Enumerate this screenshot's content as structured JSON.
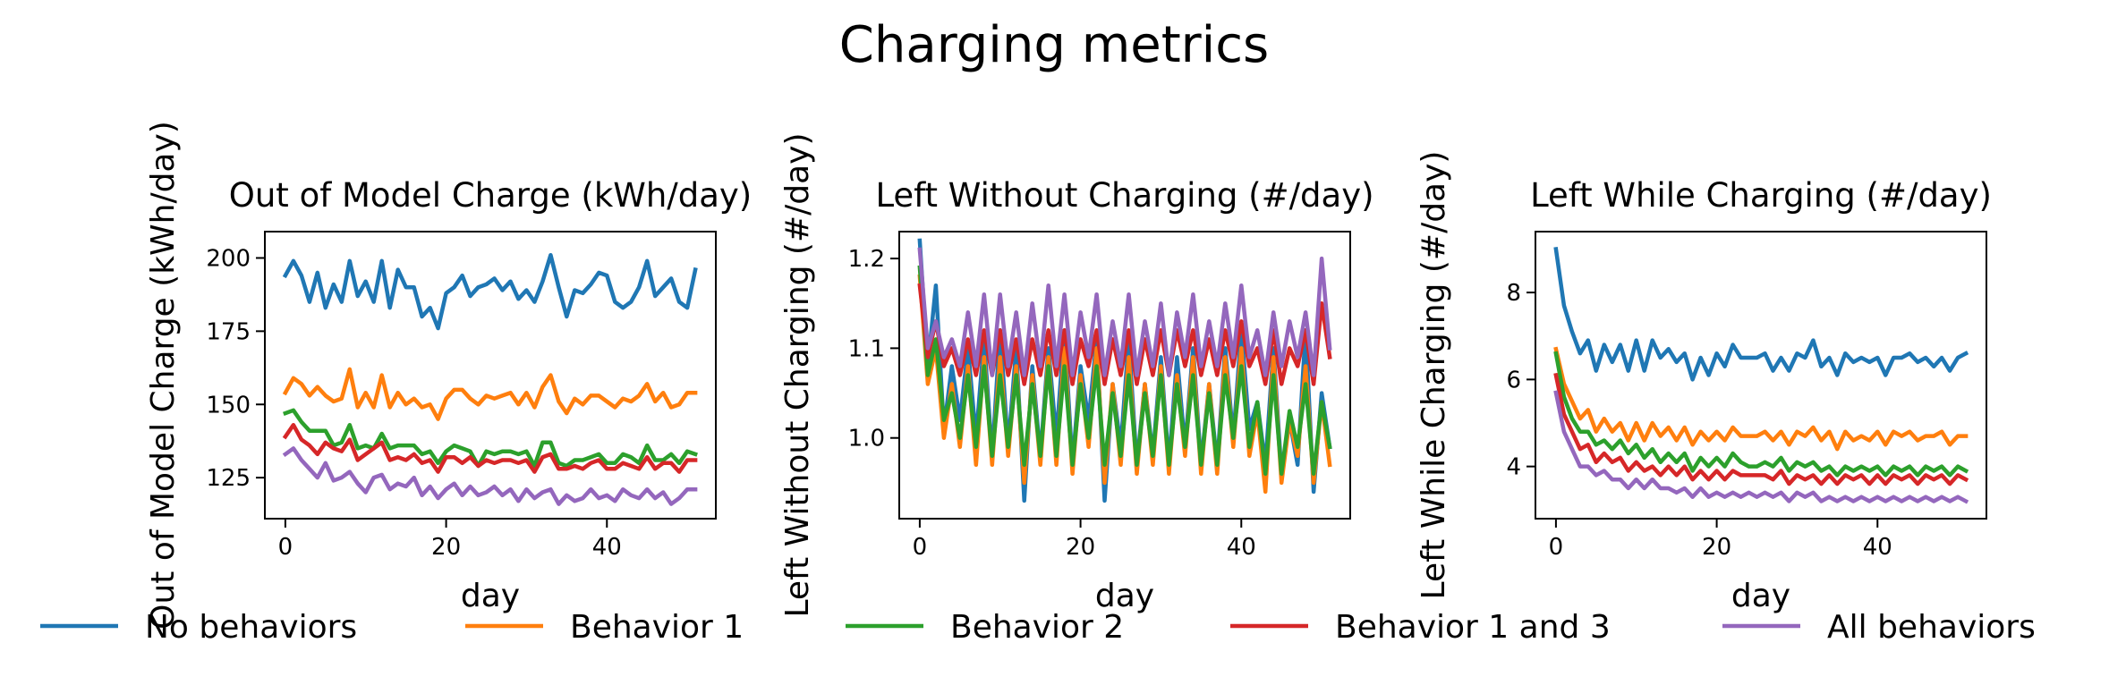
{
  "suptitle": "Charging metrics",
  "legend": {
    "placement": "bottom",
    "entries": [
      {
        "label": "No behaviors",
        "color": "#1f77b4"
      },
      {
        "label": "Behavior 1",
        "color": "#ff7f0e"
      },
      {
        "label": "Behavior 2",
        "color": "#2ca02c"
      },
      {
        "label": "Behavior 1 and 3",
        "color": "#d62728"
      },
      {
        "label": "All behaviors",
        "color": "#9467bd"
      }
    ]
  },
  "chart_data": [
    {
      "type": "line",
      "title": "Out of Model Charge (kWh/day)",
      "xlabel": "day",
      "ylabel": "Out of Model Charge (kWh/day)",
      "xlim": [
        -2.55,
        53.55
      ],
      "ylim": [
        111,
        209
      ],
      "xticks": [
        0,
        20,
        40
      ],
      "yticks": [
        125,
        150,
        175,
        200
      ],
      "x": [
        0,
        1,
        2,
        3,
        4,
        5,
        6,
        7,
        8,
        9,
        10,
        11,
        12,
        13,
        14,
        15,
        16,
        17,
        18,
        19,
        20,
        21,
        22,
        23,
        24,
        25,
        26,
        27,
        28,
        29,
        30,
        31,
        32,
        33,
        34,
        35,
        36,
        37,
        38,
        39,
        40,
        41,
        42,
        43,
        44,
        45,
        46,
        47,
        48,
        49,
        50,
        51
      ],
      "series": [
        {
          "name": "No behaviors",
          "color": "#1f77b4",
          "values": [
            194,
            199,
            194,
            185,
            195,
            183,
            191,
            185,
            199,
            187,
            192,
            185,
            199,
            183,
            196,
            190,
            190,
            180,
            183,
            176,
            188,
            190,
            194,
            187,
            190,
            191,
            193,
            189,
            192,
            186,
            189,
            185,
            192,
            201,
            190,
            180,
            189,
            188,
            191,
            195,
            194,
            185,
            183,
            185,
            190,
            199,
            187,
            190,
            193,
            185,
            183,
            196
          ]
        },
        {
          "name": "Behavior 1",
          "color": "#ff7f0e",
          "values": [
            154,
            159,
            157,
            153,
            156,
            153,
            151,
            152,
            162,
            149,
            154,
            149,
            160,
            149,
            154,
            150,
            152,
            149,
            150,
            145,
            152,
            155,
            155,
            152,
            150,
            153,
            152,
            153,
            154,
            150,
            154,
            149,
            156,
            160,
            151,
            147,
            152,
            150,
            153,
            153,
            151,
            149,
            152,
            151,
            153,
            157,
            151,
            154,
            149,
            150,
            154,
            154
          ]
        },
        {
          "name": "Behavior 2",
          "color": "#2ca02c",
          "values": [
            147,
            148,
            144,
            141,
            141,
            141,
            136,
            137,
            143,
            135,
            136,
            135,
            140,
            135,
            136,
            136,
            136,
            133,
            134,
            130,
            134,
            136,
            135,
            134,
            129,
            134,
            133,
            134,
            134,
            133,
            134,
            129,
            137,
            137,
            130,
            129,
            131,
            131,
            132,
            133,
            130,
            130,
            133,
            132,
            130,
            136,
            131,
            131,
            133,
            130,
            134,
            133
          ]
        },
        {
          "name": "Behavior 1 and 3",
          "color": "#d62728",
          "values": [
            139,
            143,
            138,
            136,
            133,
            137,
            135,
            134,
            138,
            131,
            133,
            135,
            137,
            131,
            132,
            131,
            133,
            130,
            131,
            127,
            132,
            132,
            130,
            132,
            129,
            131,
            130,
            131,
            131,
            130,
            131,
            127,
            132,
            133,
            128,
            128,
            129,
            128,
            130,
            131,
            128,
            128,
            130,
            129,
            128,
            132,
            128,
            130,
            130,
            127,
            131,
            131
          ]
        },
        {
          "name": "All behaviors",
          "color": "#9467bd",
          "values": [
            133,
            135,
            131,
            128,
            125,
            130,
            124,
            125,
            127,
            123,
            120,
            125,
            126,
            121,
            123,
            122,
            125,
            119,
            122,
            118,
            121,
            123,
            119,
            122,
            119,
            120,
            122,
            119,
            121,
            117,
            121,
            118,
            120,
            121,
            116,
            119,
            117,
            118,
            121,
            118,
            119,
            117,
            121,
            119,
            118,
            121,
            118,
            120,
            116,
            118,
            121,
            121
          ]
        }
      ]
    },
    {
      "type": "line",
      "title": "Left Without Charging (#/day)",
      "xlabel": "day",
      "ylabel": "Left Without Charging (#/day)",
      "xlim": [
        -2.55,
        53.55
      ],
      "ylim": [
        0.91,
        1.23
      ],
      "xticks": [
        0,
        20,
        40
      ],
      "yticks": [
        1.0,
        1.1,
        1.2
      ],
      "x": [
        0,
        1,
        2,
        3,
        4,
        5,
        6,
        7,
        8,
        9,
        10,
        11,
        12,
        13,
        14,
        15,
        16,
        17,
        18,
        19,
        20,
        21,
        22,
        23,
        24,
        25,
        26,
        27,
        28,
        29,
        30,
        31,
        32,
        33,
        34,
        35,
        36,
        37,
        38,
        39,
        40,
        41,
        42,
        43,
        44,
        45,
        46,
        47,
        48,
        49,
        50,
        51
      ],
      "series": [
        {
          "name": "No behaviors",
          "color": "#1f77b4",
          "values": [
            1.22,
            1.08,
            1.17,
            1.01,
            1.08,
            1.02,
            1.1,
            1.0,
            1.11,
            0.98,
            1.12,
            0.99,
            1.1,
            0.93,
            1.08,
            0.98,
            1.1,
            1.0,
            1.12,
            0.97,
            1.08,
            1.02,
            1.11,
            0.93,
            1.06,
            0.99,
            1.11,
            0.97,
            1.06,
            0.98,
            1.09,
            0.97,
            1.09,
            0.99,
            1.1,
            0.97,
            1.06,
            0.97,
            1.1,
            1.0,
            1.12,
            1.01,
            1.04,
            0.97,
            1.1,
            0.96,
            1.02,
            0.97,
            1.12,
            0.94,
            1.05,
            0.99
          ]
        },
        {
          "name": "Behavior 1",
          "color": "#ff7f0e",
          "values": [
            1.18,
            1.06,
            1.1,
            1.0,
            1.06,
            0.99,
            1.08,
            0.97,
            1.09,
            0.97,
            1.09,
            0.98,
            1.08,
            0.95,
            1.07,
            0.97,
            1.09,
            0.97,
            1.1,
            0.96,
            1.07,
            0.99,
            1.1,
            0.95,
            1.06,
            0.97,
            1.09,
            0.96,
            1.06,
            0.97,
            1.08,
            0.96,
            1.07,
            0.98,
            1.09,
            0.96,
            1.06,
            0.96,
            1.09,
            0.99,
            1.1,
            0.98,
            1.03,
            0.94,
            1.09,
            0.95,
            1.02,
            0.98,
            1.08,
            0.95,
            1.04,
            0.97
          ]
        },
        {
          "name": "Behavior 2",
          "color": "#2ca02c",
          "values": [
            1.19,
            1.07,
            1.11,
            1.02,
            1.05,
            1.0,
            1.07,
            0.99,
            1.08,
            0.98,
            1.07,
            0.99,
            1.07,
            0.97,
            1.06,
            0.98,
            1.08,
            0.98,
            1.08,
            0.97,
            1.06,
            1.0,
            1.08,
            0.97,
            1.05,
            0.98,
            1.07,
            0.97,
            1.05,
            0.98,
            1.07,
            0.97,
            1.06,
            0.99,
            1.07,
            0.97,
            1.05,
            0.97,
            1.07,
            1.0,
            1.08,
            0.99,
            1.04,
            0.96,
            1.07,
            0.96,
            1.03,
            0.99,
            1.06,
            0.96,
            1.04,
            0.99
          ]
        },
        {
          "name": "Behavior 1 and 3",
          "color": "#d62728",
          "values": [
            1.17,
            1.09,
            1.13,
            1.08,
            1.1,
            1.07,
            1.11,
            1.07,
            1.12,
            1.07,
            1.12,
            1.07,
            1.11,
            1.06,
            1.11,
            1.07,
            1.12,
            1.07,
            1.12,
            1.06,
            1.11,
            1.08,
            1.12,
            1.06,
            1.11,
            1.07,
            1.12,
            1.06,
            1.11,
            1.07,
            1.12,
            1.07,
            1.12,
            1.08,
            1.12,
            1.07,
            1.11,
            1.07,
            1.12,
            1.08,
            1.13,
            1.08,
            1.1,
            1.06,
            1.12,
            1.06,
            1.1,
            1.08,
            1.12,
            1.06,
            1.15,
            1.09
          ]
        },
        {
          "name": "All behaviors",
          "color": "#9467bd",
          "values": [
            1.21,
            1.1,
            1.13,
            1.09,
            1.11,
            1.08,
            1.14,
            1.08,
            1.16,
            1.07,
            1.16,
            1.08,
            1.14,
            1.07,
            1.15,
            1.08,
            1.17,
            1.08,
            1.16,
            1.07,
            1.14,
            1.09,
            1.16,
            1.07,
            1.13,
            1.08,
            1.16,
            1.07,
            1.13,
            1.08,
            1.15,
            1.07,
            1.14,
            1.09,
            1.16,
            1.08,
            1.13,
            1.08,
            1.15,
            1.09,
            1.17,
            1.09,
            1.12,
            1.07,
            1.14,
            1.08,
            1.13,
            1.09,
            1.14,
            1.07,
            1.2,
            1.1
          ]
        }
      ]
    },
    {
      "type": "line",
      "title": "Left While Charging (#/day)",
      "xlabel": "day",
      "ylabel": "Left While Charging (#/day)",
      "xlim": [
        -2.55,
        53.55
      ],
      "ylim": [
        2.8,
        9.4
      ],
      "xticks": [
        0,
        20,
        40
      ],
      "yticks": [
        4,
        6,
        8
      ],
      "x": [
        0,
        1,
        2,
        3,
        4,
        5,
        6,
        7,
        8,
        9,
        10,
        11,
        12,
        13,
        14,
        15,
        16,
        17,
        18,
        19,
        20,
        21,
        22,
        23,
        24,
        25,
        26,
        27,
        28,
        29,
        30,
        31,
        32,
        33,
        34,
        35,
        36,
        37,
        38,
        39,
        40,
        41,
        42,
        43,
        44,
        45,
        46,
        47,
        48,
        49,
        50,
        51
      ],
      "series": [
        {
          "name": "No behaviors",
          "color": "#1f77b4",
          "values": [
            9.0,
            7.7,
            7.1,
            6.6,
            6.9,
            6.2,
            6.8,
            6.4,
            6.8,
            6.2,
            6.9,
            6.2,
            6.9,
            6.5,
            6.7,
            6.4,
            6.6,
            6.0,
            6.5,
            6.1,
            6.6,
            6.3,
            6.8,
            6.5,
            6.5,
            6.5,
            6.6,
            6.2,
            6.5,
            6.2,
            6.6,
            6.5,
            6.9,
            6.3,
            6.5,
            6.1,
            6.6,
            6.4,
            6.5,
            6.4,
            6.5,
            6.1,
            6.5,
            6.5,
            6.6,
            6.4,
            6.5,
            6.3,
            6.5,
            6.2,
            6.5,
            6.6
          ]
        },
        {
          "name": "Behavior 1",
          "color": "#ff7f0e",
          "values": [
            6.7,
            5.9,
            5.5,
            5.1,
            5.3,
            4.8,
            5.1,
            4.8,
            5.0,
            4.6,
            5.0,
            4.6,
            5.0,
            4.7,
            4.9,
            4.6,
            4.9,
            4.5,
            4.8,
            4.6,
            4.8,
            4.6,
            4.9,
            4.7,
            4.7,
            4.7,
            4.8,
            4.6,
            4.8,
            4.5,
            4.8,
            4.7,
            4.9,
            4.6,
            4.8,
            4.4,
            4.8,
            4.6,
            4.7,
            4.6,
            4.8,
            4.5,
            4.8,
            4.7,
            4.8,
            4.6,
            4.7,
            4.7,
            4.8,
            4.5,
            4.7,
            4.7
          ]
        },
        {
          "name": "Behavior 2",
          "color": "#2ca02c",
          "values": [
            6.6,
            5.6,
            5.1,
            4.8,
            4.8,
            4.5,
            4.6,
            4.4,
            4.6,
            4.3,
            4.5,
            4.2,
            4.4,
            4.1,
            4.3,
            4.1,
            4.3,
            3.9,
            4.2,
            4.0,
            4.2,
            4.0,
            4.3,
            4.1,
            4.0,
            4.0,
            4.1,
            4.0,
            4.2,
            3.9,
            4.1,
            4.0,
            4.1,
            3.9,
            4.0,
            3.8,
            4.0,
            3.9,
            4.0,
            3.9,
            4.0,
            3.8,
            4.0,
            3.9,
            4.0,
            3.8,
            4.0,
            3.9,
            4.0,
            3.8,
            4.0,
            3.9
          ]
        },
        {
          "name": "Behavior 1 and 3",
          "color": "#d62728",
          "values": [
            6.1,
            5.2,
            4.8,
            4.4,
            4.5,
            4.1,
            4.3,
            4.1,
            4.2,
            3.9,
            4.1,
            3.9,
            4.0,
            3.8,
            4.0,
            3.8,
            4.0,
            3.7,
            3.9,
            3.7,
            3.9,
            3.7,
            3.9,
            3.8,
            3.8,
            3.8,
            3.8,
            3.7,
            3.9,
            3.6,
            3.8,
            3.7,
            3.8,
            3.6,
            3.8,
            3.6,
            3.8,
            3.7,
            3.8,
            3.6,
            3.8,
            3.6,
            3.8,
            3.7,
            3.8,
            3.6,
            3.8,
            3.7,
            3.8,
            3.6,
            3.8,
            3.7
          ]
        },
        {
          "name": "All behaviors",
          "color": "#9467bd",
          "values": [
            5.7,
            4.8,
            4.4,
            4.0,
            4.0,
            3.8,
            3.9,
            3.7,
            3.7,
            3.5,
            3.7,
            3.5,
            3.7,
            3.5,
            3.5,
            3.4,
            3.5,
            3.3,
            3.5,
            3.3,
            3.4,
            3.3,
            3.4,
            3.3,
            3.4,
            3.3,
            3.4,
            3.3,
            3.4,
            3.2,
            3.4,
            3.3,
            3.4,
            3.2,
            3.3,
            3.2,
            3.3,
            3.2,
            3.3,
            3.2,
            3.3,
            3.2,
            3.3,
            3.2,
            3.3,
            3.2,
            3.3,
            3.2,
            3.3,
            3.2,
            3.3,
            3.2
          ]
        }
      ]
    }
  ]
}
